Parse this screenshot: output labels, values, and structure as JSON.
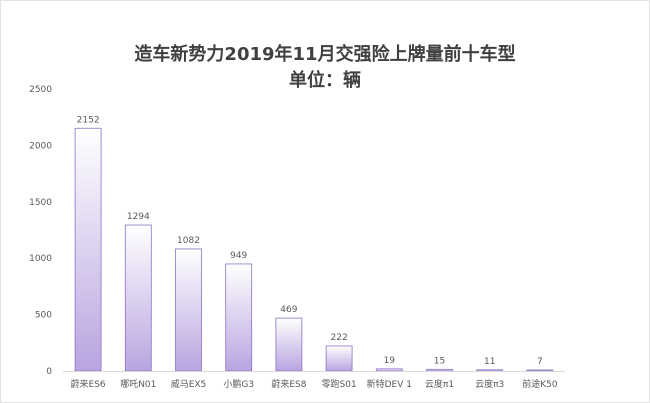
{
  "chart_data": {
    "type": "bar",
    "title": "造车新势力2019年11月交强险上牌量前十车型",
    "subtitle": "单位：辆",
    "categories": [
      "蔚来ES6",
      "哪吒N01",
      "威马EX5",
      "小鹏G3",
      "蔚来ES8",
      "零跑S01",
      "新特DEV 1",
      "云度π1",
      "云度π3",
      "前途K50"
    ],
    "values": [
      2152,
      1294,
      1082,
      949,
      469,
      222,
      19,
      15,
      11,
      7
    ],
    "data_labels": [
      "2152",
      "1294",
      "1082",
      "949",
      "469",
      "222",
      "19",
      "15",
      "11",
      "7"
    ],
    "y_ticks": [
      "0",
      "500",
      "1000",
      "1500",
      "2000",
      "2500"
    ],
    "ylim": [
      0,
      2500
    ],
    "grid": false,
    "legend": "none",
    "colors": {
      "bar_top": "#ffffff",
      "bar_bottom": "#b9a4e0",
      "bar_edge": "#8c73c6"
    }
  }
}
